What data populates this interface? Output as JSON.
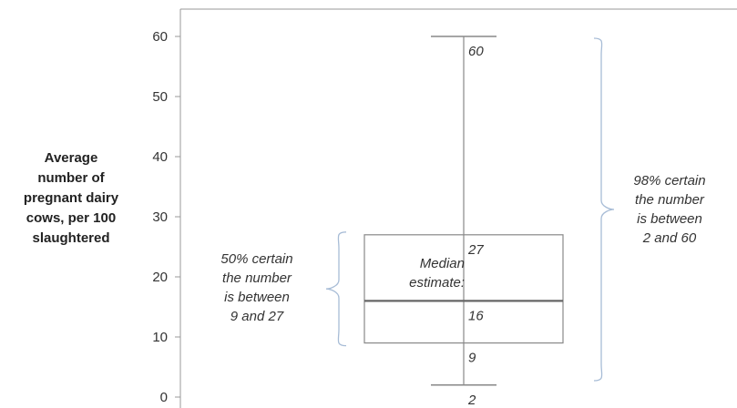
{
  "chart_data": {
    "type": "box",
    "ylabel": "Average\nnumber of\npregnant dairy\ncows, per 100\nslaughtered",
    "ylim": [
      0,
      60
    ],
    "yticks": [
      0,
      10,
      20,
      30,
      40,
      50,
      60
    ],
    "whisker_low": 2,
    "q1": 9,
    "median": 16,
    "q3": 27,
    "whisker_high": 60,
    "value_labels": [
      {
        "value": 60,
        "text": "60"
      },
      {
        "value": 27,
        "text": "27"
      },
      {
        "value": 16,
        "text": "16"
      },
      {
        "value": 9,
        "text": "9"
      },
      {
        "value": 2,
        "text": "2"
      }
    ],
    "annotations": {
      "median": "Median\nestimate:",
      "range50": "50% certain\nthe number\nis between\n9 and 27",
      "range98": "98% certain\nthe number\nis between\n2 and 60"
    },
    "colors": {
      "axis": "#999999",
      "box": "#888888",
      "median_line": "#666666",
      "brace": "#a7bcd6",
      "text": "#333333"
    }
  }
}
